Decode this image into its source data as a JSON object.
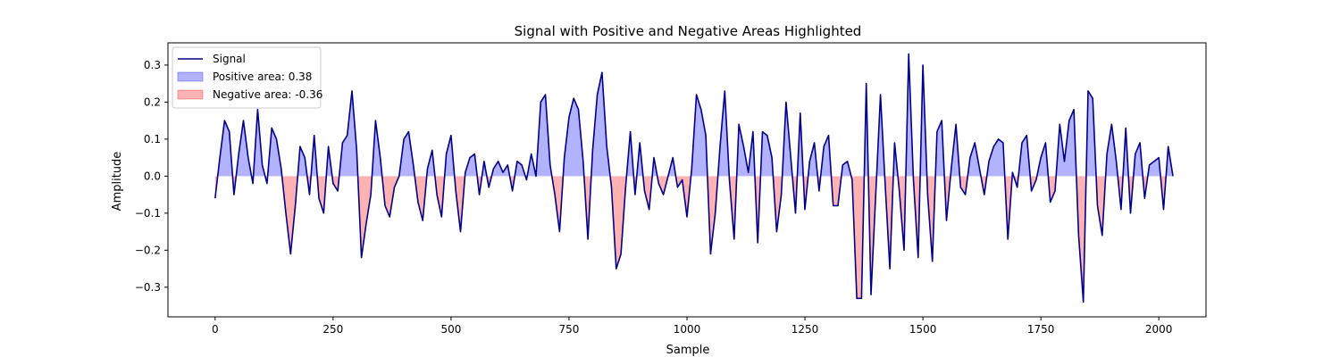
{
  "chart_data": {
    "type": "line",
    "title": "Signal with Positive and Negative Areas Highlighted",
    "xlabel": "Sample",
    "ylabel": "Amplitude",
    "xlim": [
      -100,
      2100
    ],
    "ylim": [
      -0.38,
      0.36
    ],
    "xticks": [
      0,
      250,
      500,
      750,
      1000,
      1250,
      1500,
      1750,
      2000
    ],
    "xtick_labels": [
      "0",
      "250",
      "500",
      "750",
      "1000",
      "1250",
      "1500",
      "1750",
      "2000"
    ],
    "yticks": [
      -0.3,
      -0.2,
      -0.1,
      0.0,
      0.1,
      0.2,
      0.3
    ],
    "ytick_labels": [
      "−0.3",
      "−0.2",
      "−0.1",
      "0.0",
      "0.1",
      "0.2",
      "0.3"
    ],
    "grid": false,
    "legend_position": "top-left",
    "legend": [
      {
        "label": "Signal",
        "kind": "line",
        "color": "#00008b"
      },
      {
        "label": "Positive area: 0.38",
        "kind": "patch",
        "color": "#0000ff"
      },
      {
        "label": "Negative area: -0.36",
        "kind": "patch",
        "color": "#ff0000"
      }
    ],
    "colors": {
      "signal": "#00008b",
      "positive_fill": "#0000ff",
      "negative_fill": "#ff0000"
    },
    "series": [
      {
        "name": "Signal",
        "x_start": 0,
        "x_step": 10,
        "values": [
          -0.06,
          0.05,
          0.15,
          0.12,
          -0.05,
          0.06,
          0.15,
          0.05,
          -0.02,
          0.18,
          0.03,
          -0.02,
          0.13,
          0.1,
          0.02,
          -0.1,
          -0.21,
          -0.08,
          0.08,
          0.05,
          -0.05,
          0.11,
          -0.06,
          -0.1,
          0.08,
          -0.02,
          -0.04,
          0.09,
          0.11,
          0.23,
          0.07,
          -0.22,
          -0.13,
          -0.05,
          0.15,
          0.05,
          -0.08,
          -0.11,
          -0.03,
          0.0,
          0.1,
          0.12,
          0.03,
          -0.07,
          -0.12,
          0.02,
          0.07,
          -0.05,
          -0.11,
          0.06,
          0.11,
          -0.04,
          -0.15,
          0.01,
          0.05,
          0.06,
          -0.05,
          0.04,
          -0.03,
          0.02,
          0.04,
          0.01,
          0.03,
          -0.04,
          0.04,
          0.03,
          -0.01,
          0.06,
          0.0,
          0.2,
          0.22,
          0.03,
          -0.05,
          -0.15,
          0.05,
          0.16,
          0.21,
          0.18,
          0.04,
          -0.17,
          0.07,
          0.22,
          0.28,
          0.08,
          -0.03,
          -0.25,
          -0.21,
          -0.03,
          0.12,
          -0.05,
          0.09,
          -0.04,
          -0.09,
          0.05,
          -0.02,
          -0.05,
          0.0,
          0.05,
          -0.03,
          -0.01,
          -0.11,
          0.02,
          0.22,
          0.18,
          0.11,
          -0.21,
          -0.1,
          0.08,
          0.23,
          -0.01,
          -0.17,
          0.14,
          0.08,
          0.01,
          0.12,
          -0.18,
          0.12,
          0.11,
          0.05,
          -0.15,
          -0.05,
          0.2,
          0.05,
          -0.1,
          0.17,
          -0.09,
          0.04,
          0.09,
          -0.04,
          0.08,
          0.11,
          -0.08,
          -0.08,
          0.03,
          0.04,
          -0.01,
          -0.33,
          -0.33,
          0.25,
          -0.32,
          -0.05,
          0.22,
          -0.02,
          -0.25,
          0.09,
          -0.04,
          -0.2,
          0.33,
          -0.01,
          -0.22,
          0.3,
          -0.05,
          -0.23,
          0.12,
          0.15,
          -0.12,
          0.02,
          0.14,
          -0.03,
          -0.05,
          0.05,
          0.09,
          0.02,
          -0.05,
          0.04,
          0.08,
          0.1,
          0.09,
          -0.17,
          0.01,
          -0.03,
          0.09,
          0.11,
          -0.04,
          -0.01,
          0.05,
          0.09,
          -0.07,
          -0.04,
          0.14,
          0.04,
          0.15,
          0.18,
          -0.16,
          -0.34,
          0.23,
          0.21,
          -0.08,
          -0.16,
          0.06,
          0.14,
          0.04,
          -0.09,
          0.13,
          -0.1,
          0.06,
          0.09,
          -0.06,
          0.03,
          0.04,
          0.05,
          -0.09,
          0.08,
          0.0
        ]
      }
    ],
    "areas": {
      "positive": 0.38,
      "negative": -0.36
    }
  }
}
